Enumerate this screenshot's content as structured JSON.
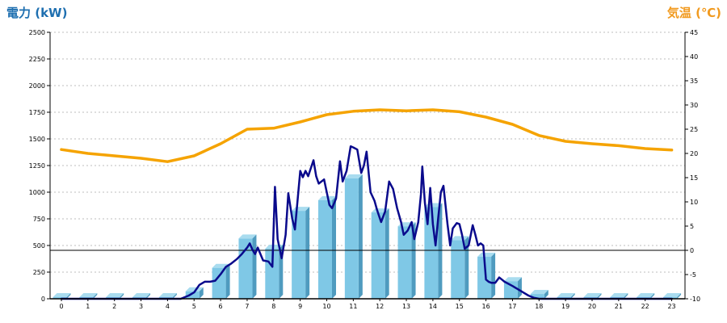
{
  "chart_data": {
    "type": "bar",
    "left_axis_label": "電力 (kW)",
    "right_axis_label": "気温 (℃)",
    "colors": {
      "bar_front": "#7fc8e6",
      "bar_side": "#4f9bbf",
      "bar_top": "#a9dcef",
      "power_line": "#0a0a8c",
      "temperature_line": "#f5a300",
      "grid": "#bdbdbd",
      "zero_line": "#000000",
      "left_title": "#1e6fb0",
      "right_title": "#f19a1f"
    },
    "x_ticks": [
      "0",
      "1",
      "2",
      "3",
      "4",
      "5",
      "6",
      "7",
      "8",
      "9",
      "10",
      "11",
      "12",
      "13",
      "14",
      "15",
      "16",
      "17",
      "18",
      "19",
      "20",
      "21",
      "22",
      "23"
    ],
    "y_left": {
      "min": 0,
      "max": 2500,
      "ticks": [
        "0",
        "250",
        "500",
        "750",
        "1000",
        "1250",
        "1500",
        "1750",
        "2000",
        "2250",
        "2500"
      ]
    },
    "y_right": {
      "min": -10,
      "max": 45,
      "ticks": [
        "-10",
        "-5",
        "0",
        "5",
        "10",
        "15",
        "20",
        "25",
        "30",
        "35",
        "40",
        "45"
      ]
    },
    "hourly_power_bars": [
      15,
      15,
      15,
      15,
      15,
      70,
      290,
      565,
      470,
      825,
      925,
      1130,
      810,
      680,
      860,
      550,
      395,
      165,
      45,
      15,
      15,
      15,
      15,
      15
    ],
    "power_line": [
      [
        0,
        0
      ],
      [
        1,
        0
      ],
      [
        2,
        0
      ],
      [
        3,
        0
      ],
      [
        4,
        0
      ],
      [
        4.5,
        0
      ],
      [
        4.8,
        30
      ],
      [
        5,
        60
      ],
      [
        5.2,
        130
      ],
      [
        5.4,
        160
      ],
      [
        5.6,
        160
      ],
      [
        5.8,
        170
      ],
      [
        6,
        230
      ],
      [
        6.2,
        300
      ],
      [
        6.4,
        330
      ],
      [
        6.6,
        370
      ],
      [
        6.8,
        420
      ],
      [
        7,
        480
      ],
      [
        7.1,
        520
      ],
      [
        7.2,
        460
      ],
      [
        7.3,
        420
      ],
      [
        7.4,
        480
      ],
      [
        7.5,
        420
      ],
      [
        7.6,
        360
      ],
      [
        7.8,
        350
      ],
      [
        7.95,
        300
      ],
      [
        8.05,
        1050
      ],
      [
        8.15,
        560
      ],
      [
        8.3,
        380
      ],
      [
        8.45,
        600
      ],
      [
        8.55,
        990
      ],
      [
        8.7,
        750
      ],
      [
        8.8,
        650
      ],
      [
        9,
        1200
      ],
      [
        9.1,
        1140
      ],
      [
        9.2,
        1200
      ],
      [
        9.3,
        1150
      ],
      [
        9.5,
        1300
      ],
      [
        9.6,
        1150
      ],
      [
        9.7,
        1080
      ],
      [
        9.9,
        1120
      ],
      [
        10,
        1000
      ],
      [
        10.1,
        880
      ],
      [
        10.2,
        850
      ],
      [
        10.35,
        940
      ],
      [
        10.5,
        1290
      ],
      [
        10.6,
        1100
      ],
      [
        10.75,
        1200
      ],
      [
        10.9,
        1430
      ],
      [
        11,
        1420
      ],
      [
        11.15,
        1400
      ],
      [
        11.3,
        1180
      ],
      [
        11.4,
        1250
      ],
      [
        11.5,
        1380
      ],
      [
        11.65,
        1000
      ],
      [
        11.8,
        920
      ],
      [
        11.9,
        830
      ],
      [
        12.05,
        720
      ],
      [
        12.2,
        820
      ],
      [
        12.35,
        1100
      ],
      [
        12.5,
        1030
      ],
      [
        12.65,
        850
      ],
      [
        12.8,
        720
      ],
      [
        12.9,
        600
      ],
      [
        13.05,
        640
      ],
      [
        13.2,
        720
      ],
      [
        13.3,
        560
      ],
      [
        13.45,
        720
      ],
      [
        13.55,
        980
      ],
      [
        13.6,
        1240
      ],
      [
        13.7,
        900
      ],
      [
        13.8,
        700
      ],
      [
        13.9,
        1040
      ],
      [
        14,
        700
      ],
      [
        14.1,
        500
      ],
      [
        14.2,
        760
      ],
      [
        14.3,
        1000
      ],
      [
        14.4,
        1060
      ],
      [
        14.55,
        700
      ],
      [
        14.65,
        500
      ],
      [
        14.75,
        660
      ],
      [
        14.9,
        710
      ],
      [
        15,
        700
      ],
      [
        15.1,
        600
      ],
      [
        15.2,
        470
      ],
      [
        15.35,
        500
      ],
      [
        15.5,
        690
      ],
      [
        15.6,
        600
      ],
      [
        15.7,
        500
      ],
      [
        15.8,
        520
      ],
      [
        15.9,
        500
      ],
      [
        16,
        180
      ],
      [
        16.1,
        160
      ],
      [
        16.2,
        150
      ],
      [
        16.35,
        150
      ],
      [
        16.5,
        200
      ],
      [
        16.6,
        180
      ],
      [
        16.7,
        160
      ],
      [
        16.85,
        140
      ],
      [
        17,
        120
      ],
      [
        17.2,
        90
      ],
      [
        17.4,
        60
      ],
      [
        17.6,
        30
      ],
      [
        17.8,
        10
      ],
      [
        18,
        0
      ],
      [
        19,
        0
      ],
      [
        20,
        0
      ],
      [
        21,
        0
      ],
      [
        22,
        0
      ],
      [
        23,
        0
      ]
    ],
    "temperature_line": [
      [
        0,
        20.8
      ],
      [
        1,
        20.0
      ],
      [
        2,
        19.5
      ],
      [
        3,
        19.0
      ],
      [
        4,
        18.3
      ],
      [
        5,
        19.5
      ],
      [
        6,
        22.0
      ],
      [
        7,
        25.0
      ],
      [
        8,
        25.2
      ],
      [
        9,
        26.5
      ],
      [
        10,
        28.0
      ],
      [
        11,
        28.7
      ],
      [
        12,
        29.0
      ],
      [
        13,
        28.8
      ],
      [
        14,
        29.0
      ],
      [
        15,
        28.6
      ],
      [
        16,
        27.5
      ],
      [
        17,
        26.0
      ],
      [
        18,
        23.7
      ],
      [
        19,
        22.5
      ],
      [
        20,
        22.0
      ],
      [
        21,
        21.6
      ],
      [
        22,
        21.0
      ],
      [
        23,
        20.7
      ]
    ]
  }
}
